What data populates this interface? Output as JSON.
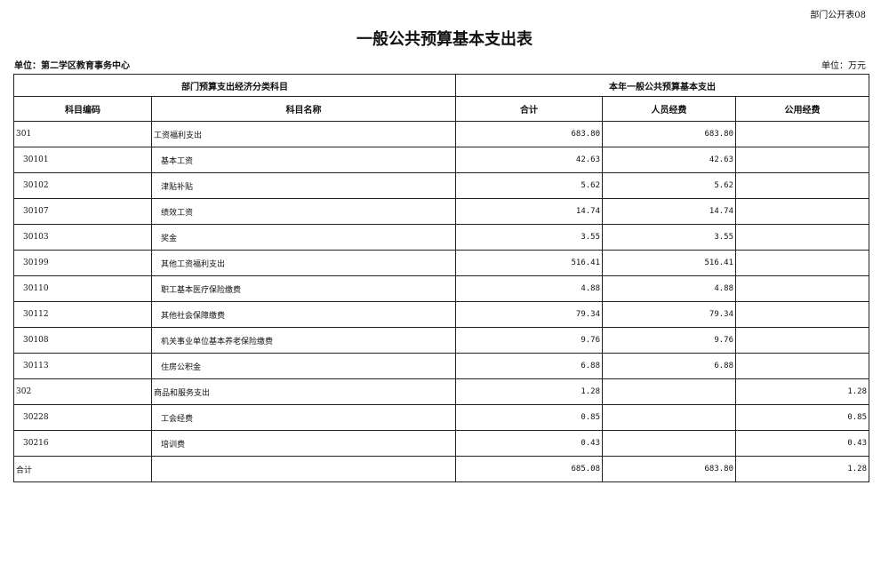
{
  "form_no": "部门公开表08",
  "title": "一般公共预算基本支出表",
  "unit_label": "单位：第二学区教育事务中心",
  "currency_unit": "单位：万元",
  "header": {
    "group1": "部门预算支出经济分类科目",
    "group2": "本年一般公共预算基本支出",
    "code": "科目编码",
    "name": "科目名称",
    "total": "合计",
    "personnel": "人员经费",
    "public": "公用经费"
  },
  "rows": [
    {
      "code": "301",
      "name": "工资福利支出",
      "total": "683.80",
      "personnel": "683.80",
      "public": "",
      "level": 1
    },
    {
      "code": "30101",
      "name": "基本工资",
      "total": "42.63",
      "personnel": "42.63",
      "public": "",
      "level": 2
    },
    {
      "code": "30102",
      "name": "津贴补贴",
      "total": "5.62",
      "personnel": "5.62",
      "public": "",
      "level": 2
    },
    {
      "code": "30107",
      "name": "绩效工资",
      "total": "14.74",
      "personnel": "14.74",
      "public": "",
      "level": 2
    },
    {
      "code": "30103",
      "name": "奖金",
      "total": "3.55",
      "personnel": "3.55",
      "public": "",
      "level": 2
    },
    {
      "code": "30199",
      "name": "其他工资福利支出",
      "total": "516.41",
      "personnel": "516.41",
      "public": "",
      "level": 2
    },
    {
      "code": "30110",
      "name": "职工基本医疗保险缴费",
      "total": "4.88",
      "personnel": "4.88",
      "public": "",
      "level": 2
    },
    {
      "code": "30112",
      "name": "其他社会保障缴费",
      "total": "79.34",
      "personnel": "79.34",
      "public": "",
      "level": 2
    },
    {
      "code": "30108",
      "name": "机关事业单位基本养老保险缴费",
      "total": "9.76",
      "personnel": "9.76",
      "public": "",
      "level": 2
    },
    {
      "code": "30113",
      "name": "住房公积金",
      "total": "6.88",
      "personnel": "6.88",
      "public": "",
      "level": 2
    },
    {
      "code": "302",
      "name": "商品和服务支出",
      "total": "1.28",
      "personnel": "",
      "public": "1.28",
      "level": 1
    },
    {
      "code": "30228",
      "name": "工会经费",
      "total": "0.85",
      "personnel": "",
      "public": "0.85",
      "level": 2
    },
    {
      "code": "30216",
      "name": "培训费",
      "total": "0.43",
      "personnel": "",
      "public": "0.43",
      "level": 2
    },
    {
      "code": "合计",
      "name": "",
      "total": "685.08",
      "personnel": "683.80",
      "public": "1.28",
      "level": 1
    }
  ]
}
